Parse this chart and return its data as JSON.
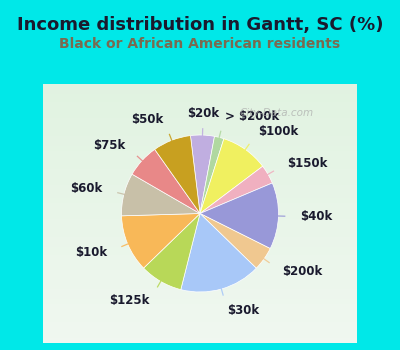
{
  "title": "Income distribution in Gantt, SC (%)",
  "subtitle": "Black or African American residents",
  "watermark": "City-Data.com",
  "background_outer": "#00e8e8",
  "background_inner_top": "#e8f8f0",
  "background_inner_bottom": "#c8f0e0",
  "title_color": "#1a1a2e",
  "subtitle_color": "#7a6a50",
  "labels": [
    "$20k",
    "> $200k",
    "$100k",
    "$150k",
    "$40k",
    "$200k",
    "$30k",
    "$125k",
    "$10k",
    "$60k",
    "$75k",
    "$50k"
  ],
  "sizes": [
    5,
    2,
    10,
    4,
    14,
    5,
    17,
    9,
    12,
    9,
    7,
    8
  ],
  "colors": [
    "#c0aee0",
    "#b0d8a0",
    "#f0f060",
    "#f0b0c0",
    "#9898d8",
    "#f0c890",
    "#a8c8f8",
    "#b8d858",
    "#f8b858",
    "#c8c0a8",
    "#e88888",
    "#c8a020"
  ],
  "label_fontsize": 8.5,
  "title_fontsize": 13,
  "subtitle_fontsize": 10,
  "startangle": 97
}
